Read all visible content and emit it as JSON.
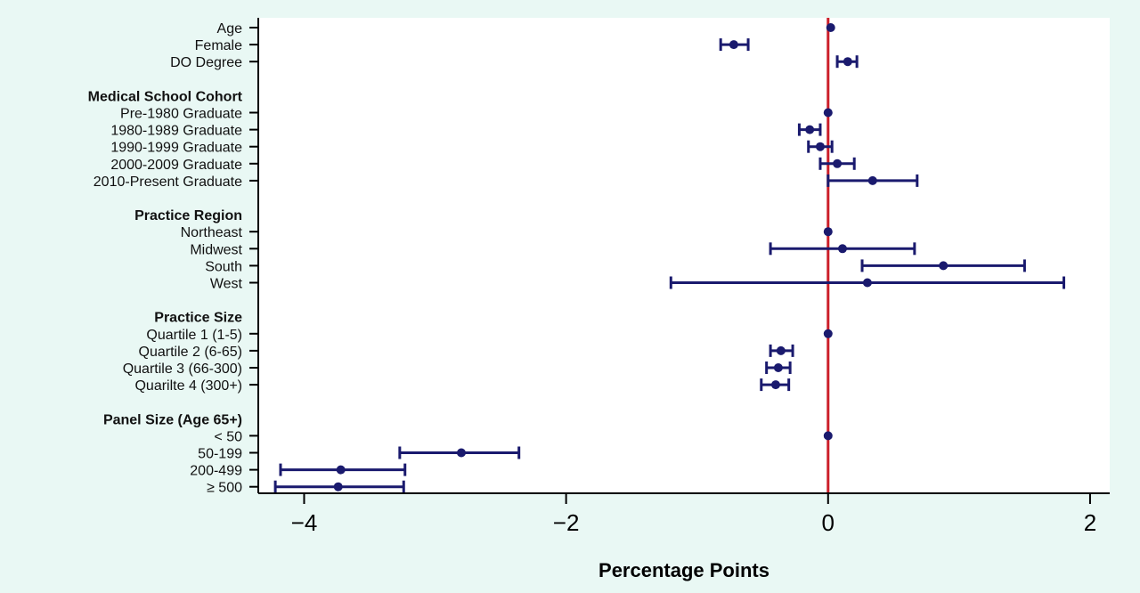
{
  "colors": {
    "background": "#e9f8f4",
    "plot_area": "#ffffff",
    "points": "#1a1a6e",
    "reference_line": "#cc1f2a",
    "axis": "#000000"
  },
  "chart_data": {
    "type": "scatter",
    "subtype": "coefficient-plot-with-confidence-intervals",
    "xlabel": "Percentage Points",
    "ylabel": "",
    "xlim": [
      -4.35,
      2.15
    ],
    "x_ticks": [
      -4,
      -2,
      0,
      2
    ],
    "x_tick_labels": [
      "−4",
      "−2",
      "0",
      "2"
    ],
    "reference_line_x": 0,
    "grid": false,
    "legend": "none",
    "rows": [
      {
        "label": "Age",
        "kind": "item",
        "estimate": 0.02,
        "ci": null
      },
      {
        "label": "Female",
        "kind": "item",
        "estimate": -0.72,
        "ci": [
          -0.82,
          -0.61
        ]
      },
      {
        "label": "DO Degree",
        "kind": "item",
        "estimate": 0.15,
        "ci": [
          0.07,
          0.22
        ]
      },
      {
        "label": "",
        "kind": "spacer"
      },
      {
        "label": "Medical School Cohort",
        "kind": "header"
      },
      {
        "label": "Pre-1980 Graduate",
        "kind": "item",
        "estimate": 0,
        "ci": null
      },
      {
        "label": "1980-1989 Graduate",
        "kind": "item",
        "estimate": -0.14,
        "ci": [
          -0.22,
          -0.06
        ]
      },
      {
        "label": "1990-1999 Graduate",
        "kind": "item",
        "estimate": -0.06,
        "ci": [
          -0.15,
          0.03
        ]
      },
      {
        "label": "2000-2009 Graduate",
        "kind": "item",
        "estimate": 0.07,
        "ci": [
          -0.06,
          0.2
        ]
      },
      {
        "label": "2010-Present Graduate",
        "kind": "item",
        "estimate": 0.34,
        "ci": [
          0,
          0.68
        ]
      },
      {
        "label": "",
        "kind": "spacer"
      },
      {
        "label": "Practice Region",
        "kind": "header"
      },
      {
        "label": "Northeast",
        "kind": "item",
        "estimate": 0,
        "ci": null
      },
      {
        "label": "Midwest",
        "kind": "item",
        "estimate": 0.11,
        "ci": [
          -0.44,
          0.66
        ]
      },
      {
        "label": "South",
        "kind": "item",
        "estimate": 0.88,
        "ci": [
          0.26,
          1.5
        ]
      },
      {
        "label": "West",
        "kind": "item",
        "estimate": 0.3,
        "ci": [
          -1.2,
          1.8
        ]
      },
      {
        "label": "",
        "kind": "spacer"
      },
      {
        "label": "Practice Size",
        "kind": "header"
      },
      {
        "label": "Quartile 1 (1-5)",
        "kind": "item",
        "estimate": 0,
        "ci": null
      },
      {
        "label": "Quartile 2 (6-65)",
        "kind": "item",
        "estimate": -0.36,
        "ci": [
          -0.44,
          -0.27
        ]
      },
      {
        "label": "Quartile 3 (66-300)",
        "kind": "item",
        "estimate": -0.38,
        "ci": [
          -0.47,
          -0.29
        ]
      },
      {
        "label": "Quarilte 4 (300+)",
        "kind": "item",
        "estimate": -0.4,
        "ci": [
          -0.51,
          -0.3
        ]
      },
      {
        "label": "",
        "kind": "spacer"
      },
      {
        "label": "Panel Size (Age 65+)",
        "kind": "header"
      },
      {
        "label": "< 50",
        "kind": "item",
        "estimate": 0,
        "ci": null
      },
      {
        "label": "50-199",
        "kind": "item",
        "estimate": -2.8,
        "ci": [
          -3.27,
          -2.36
        ]
      },
      {
        "label": "200-499",
        "kind": "item",
        "estimate": -3.72,
        "ci": [
          -4.18,
          -3.23
        ]
      },
      {
        "label": "≥ 500",
        "kind": "item",
        "estimate": -3.74,
        "ci": [
          -4.22,
          -3.24
        ]
      }
    ]
  }
}
